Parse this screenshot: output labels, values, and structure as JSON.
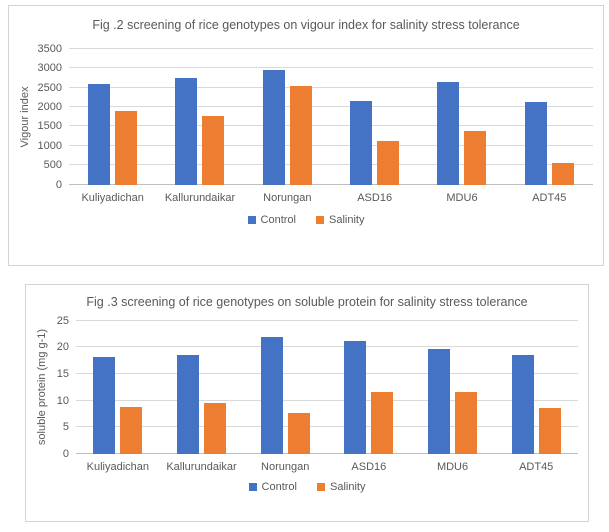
{
  "colors": {
    "control": "#4472C4",
    "salinity": "#ED7D31",
    "gridline": "#D9D9D9",
    "axis_line": "#BFBFBF",
    "text": "#595959",
    "chart_border": "#D4D4D4",
    "background": "#FFFFFF"
  },
  "chart_data": [
    {
      "type": "bar",
      "title": "Fig .2 screening of rice genotypes on vigour index for salinity stress tolerance",
      "xlabel": "",
      "ylabel": "Vigour index",
      "categories": [
        "Kuliyadichan",
        "Kallurundaikar",
        "Norungan",
        "ASD16",
        "MDU6",
        "ADT45"
      ],
      "series": [
        {
          "name": "Control",
          "color": "#4472C4",
          "values": [
            2600,
            2750,
            2950,
            2150,
            2650,
            2120
          ]
        },
        {
          "name": "Salinity",
          "color": "#ED7D31",
          "values": [
            1900,
            1770,
            2550,
            1130,
            1380,
            560
          ]
        }
      ],
      "ylim": [
        0,
        3500
      ],
      "ytick_step": 500,
      "yticks": [
        0,
        500,
        1000,
        1500,
        2000,
        2500,
        3000,
        3500
      ],
      "grid": true,
      "legend_position": "bottom"
    },
    {
      "type": "bar",
      "title": "Fig .3 screening of rice genotypes on soluble protein for salinity stress tolerance",
      "xlabel": "",
      "ylabel": "soluble protein (mg g-1)",
      "categories": [
        "Kuliyadichan",
        "Kallurundaikar",
        "Norungan",
        "ASD16",
        "MDU6",
        "ADT45"
      ],
      "series": [
        {
          "name": "Control",
          "color": "#4472C4",
          "values": [
            18.2,
            18.6,
            22,
            21.2,
            19.7,
            18.5
          ]
        },
        {
          "name": "Salinity",
          "color": "#ED7D31",
          "values": [
            8.7,
            9.5,
            7.7,
            11.7,
            11.7,
            8.6
          ]
        }
      ],
      "ylim": [
        0,
        25
      ],
      "ytick_step": 5,
      "yticks": [
        0,
        5,
        10,
        15,
        20,
        25
      ],
      "grid": true,
      "legend_position": "bottom"
    }
  ]
}
